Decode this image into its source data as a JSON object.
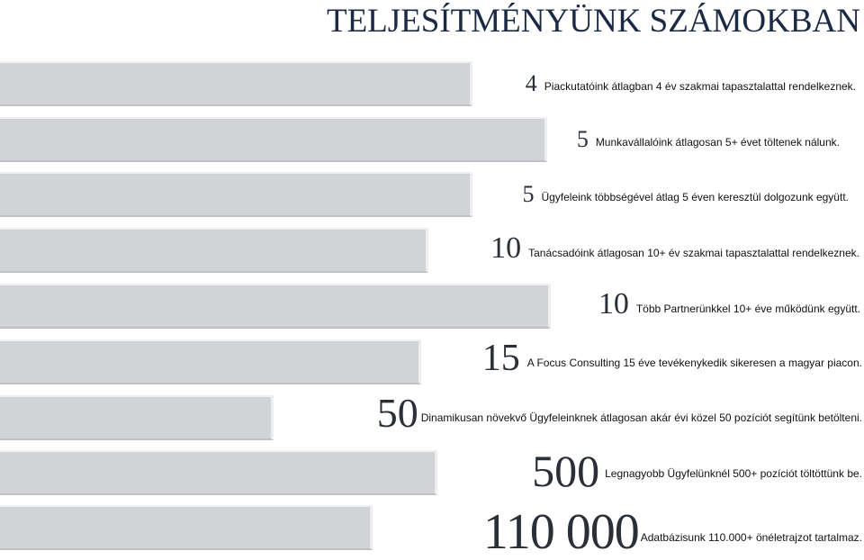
{
  "title": "TELJESÍTMÉNYÜNK SZÁMOKBAN",
  "stats": [
    {
      "number": "4",
      "text": "Piackutatóink átlagban 4 év szakmai tapasztalattal rendelkeznek."
    },
    {
      "number": "5",
      "text": "Munkavállalóink átlagosan 5+ évet töltenek nálunk."
    },
    {
      "number": "5",
      "text": "Ügyfeleink többségével átlag 5 éven keresztül dolgozunk együtt."
    },
    {
      "number": "10",
      "text": "Tanácsadóink átlagosan 10+ év szakmai tapasztalattal rendelkeznek."
    },
    {
      "number": "10",
      "text": "Több Partnerünkkel 10+ éve működünk együtt."
    },
    {
      "number": "15",
      "text": "A Focus Consulting 15 éve tevékenykedik sikeresen a magyar piacon."
    },
    {
      "number": "50",
      "text": "Dinamikusan növekvő Ügyfeleinknek átlagosan akár évi közel 50 pozíciót segítünk betölteni."
    },
    {
      "number": "500",
      "text": "Legnagyobb Ügyfelünknél 500+ pozíciót töltöttünk be."
    },
    {
      "number": "110 000",
      "text": "Adatbázisunk 110.000+ önéletrajzot tartalmaz."
    }
  ]
}
